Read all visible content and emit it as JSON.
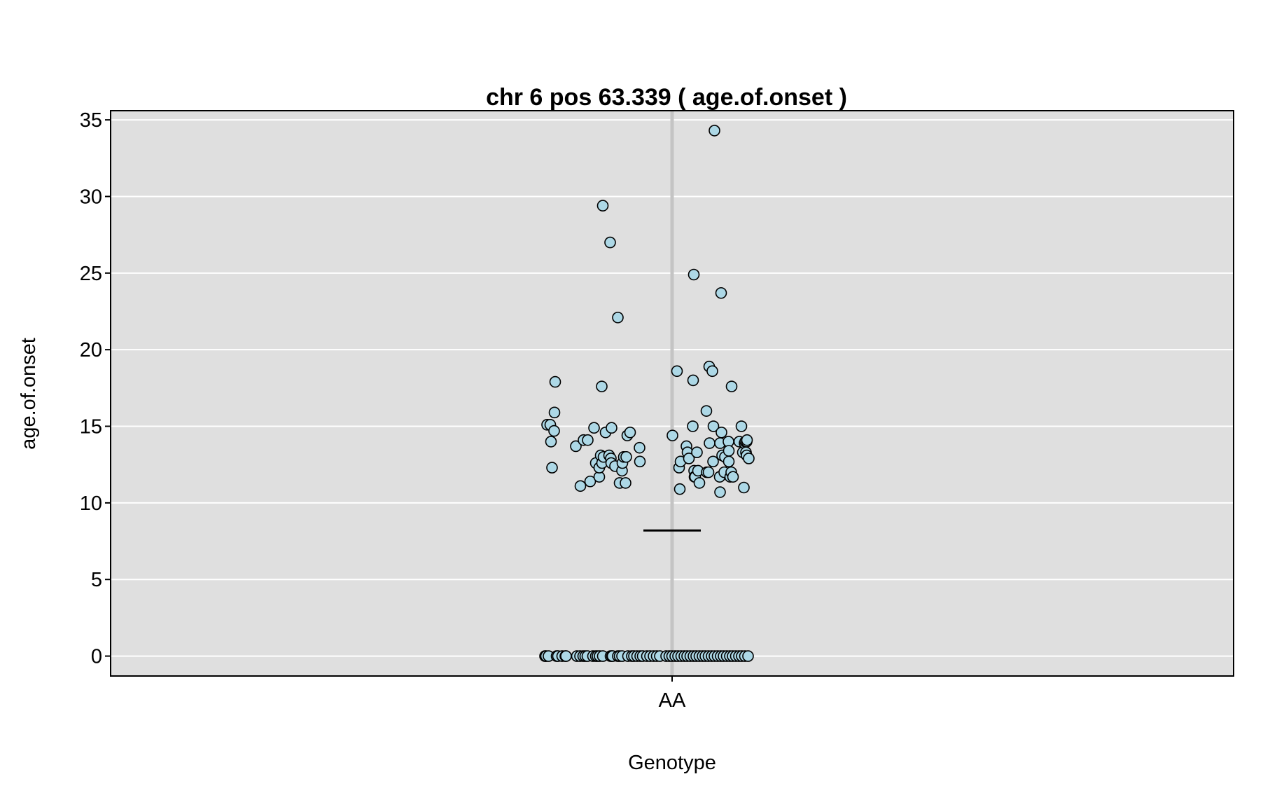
{
  "chart_data": {
    "type": "scatter",
    "title": "chr 6 pos 63.339 ( age.of.onset )",
    "xlabel": "Genotype",
    "ylabel": "age.of.onset",
    "categories": [
      "AA"
    ],
    "ylim": [
      -1.3,
      35.6
    ],
    "yticks": [
      0,
      5,
      10,
      15,
      20,
      25,
      30,
      35
    ],
    "grid": true,
    "mean_line": 8.2,
    "colors": {
      "panel_background": "#dfdfdf",
      "grid": "#ffffff",
      "point_fill": "#add8e6",
      "point_stroke": "#000000",
      "category_line": "#c4c4c4",
      "mean_line": "#000000"
    },
    "points": [
      {
        "x": -0.357,
        "y": 15.1
      },
      {
        "x": -0.348,
        "y": 15.1
      },
      {
        "x": -0.346,
        "y": 14.0
      },
      {
        "x": -0.343,
        "y": 12.3
      },
      {
        "x": -0.337,
        "y": 14.7
      },
      {
        "x": -0.336,
        "y": 15.9
      },
      {
        "x": -0.334,
        "y": 17.9
      },
      {
        "x": -0.275,
        "y": 13.7
      },
      {
        "x": -0.262,
        "y": 11.1
      },
      {
        "x": -0.253,
        "y": 14.1
      },
      {
        "x": -0.241,
        "y": 14.1
      },
      {
        "x": -0.234,
        "y": 11.4
      },
      {
        "x": -0.223,
        "y": 14.9
      },
      {
        "x": -0.218,
        "y": 12.6
      },
      {
        "x": -0.208,
        "y": 11.7
      },
      {
        "x": -0.208,
        "y": 12.3
      },
      {
        "x": -0.204,
        "y": 13.1
      },
      {
        "x": -0.201,
        "y": 17.6
      },
      {
        "x": -0.2,
        "y": 12.6
      },
      {
        "x": -0.198,
        "y": 29.4
      },
      {
        "x": -0.196,
        "y": 13.0
      },
      {
        "x": -0.19,
        "y": 14.6
      },
      {
        "x": -0.18,
        "y": 13.1
      },
      {
        "x": -0.177,
        "y": 27.0
      },
      {
        "x": -0.175,
        "y": 12.9
      },
      {
        "x": -0.174,
        "y": 12.6
      },
      {
        "x": -0.173,
        "y": 14.9
      },
      {
        "x": -0.163,
        "y": 12.4
      },
      {
        "x": -0.155,
        "y": 22.1
      },
      {
        "x": -0.15,
        "y": 11.3
      },
      {
        "x": -0.143,
        "y": 12.1
      },
      {
        "x": -0.142,
        "y": 12.6
      },
      {
        "x": -0.138,
        "y": 13.0
      },
      {
        "x": -0.133,
        "y": 11.3
      },
      {
        "x": -0.131,
        "y": 13.0
      },
      {
        "x": -0.128,
        "y": 14.4
      },
      {
        "x": -0.12,
        "y": 14.6
      },
      {
        "x": -0.093,
        "y": 13.6
      },
      {
        "x": -0.092,
        "y": 12.7
      },
      {
        "x": 0.001,
        "y": 14.4
      },
      {
        "x": 0.014,
        "y": 18.6
      },
      {
        "x": 0.02,
        "y": 12.3
      },
      {
        "x": 0.022,
        "y": 10.9
      },
      {
        "x": 0.024,
        "y": 12.7
      },
      {
        "x": 0.041,
        "y": 13.7
      },
      {
        "x": 0.044,
        "y": 13.3
      },
      {
        "x": 0.048,
        "y": 12.9
      },
      {
        "x": 0.059,
        "y": 15.0
      },
      {
        "x": 0.06,
        "y": 18.0
      },
      {
        "x": 0.062,
        "y": 24.9
      },
      {
        "x": 0.063,
        "y": 12.1
      },
      {
        "x": 0.064,
        "y": 11.7
      },
      {
        "x": 0.066,
        "y": 11.7
      },
      {
        "x": 0.071,
        "y": 13.3
      },
      {
        "x": 0.074,
        "y": 12.1
      },
      {
        "x": 0.078,
        "y": 11.3
      },
      {
        "x": 0.098,
        "y": 16.0
      },
      {
        "x": 0.099,
        "y": 12.0
      },
      {
        "x": 0.104,
        "y": 12.0
      },
      {
        "x": 0.106,
        "y": 18.9
      },
      {
        "x": 0.107,
        "y": 13.9
      },
      {
        "x": 0.115,
        "y": 18.6
      },
      {
        "x": 0.117,
        "y": 12.7
      },
      {
        "x": 0.118,
        "y": 15.0
      },
      {
        "x": 0.121,
        "y": 34.3
      },
      {
        "x": 0.136,
        "y": 11.7
      },
      {
        "x": 0.137,
        "y": 13.9
      },
      {
        "x": 0.137,
        "y": 10.7
      },
      {
        "x": 0.14,
        "y": 23.7
      },
      {
        "x": 0.141,
        "y": 14.6
      },
      {
        "x": 0.143,
        "y": 13.1
      },
      {
        "x": 0.149,
        "y": 12.0
      },
      {
        "x": 0.151,
        "y": 13.0
      },
      {
        "x": 0.161,
        "y": 14.0
      },
      {
        "x": 0.162,
        "y": 13.4
      },
      {
        "x": 0.162,
        "y": 12.7
      },
      {
        "x": 0.166,
        "y": 11.7
      },
      {
        "x": 0.169,
        "y": 12.0
      },
      {
        "x": 0.17,
        "y": 17.6
      },
      {
        "x": 0.174,
        "y": 11.7
      },
      {
        "x": 0.192,
        "y": 14.0
      },
      {
        "x": 0.198,
        "y": 15.0
      },
      {
        "x": 0.202,
        "y": 13.3
      },
      {
        "x": 0.205,
        "y": 11.0
      },
      {
        "x": 0.207,
        "y": 13.9
      },
      {
        "x": 0.209,
        "y": 14.0
      },
      {
        "x": 0.211,
        "y": 13.3
      },
      {
        "x": 0.213,
        "y": 14.0
      },
      {
        "x": 0.213,
        "y": 13.1
      },
      {
        "x": 0.214,
        "y": 14.1
      },
      {
        "x": 0.219,
        "y": 12.9
      },
      {
        "x": -0.363,
        "y": 0
      },
      {
        "x": -0.36,
        "y": 0
      },
      {
        "x": -0.353,
        "y": 0
      },
      {
        "x": -0.33,
        "y": 0
      },
      {
        "x": -0.326,
        "y": 0
      },
      {
        "x": -0.314,
        "y": 0
      },
      {
        "x": -0.305,
        "y": 0
      },
      {
        "x": -0.303,
        "y": 0
      },
      {
        "x": -0.272,
        "y": 0
      },
      {
        "x": -0.263,
        "y": 0
      },
      {
        "x": -0.254,
        "y": 0
      },
      {
        "x": -0.248,
        "y": 0
      },
      {
        "x": -0.242,
        "y": 0
      },
      {
        "x": -0.226,
        "y": 0
      },
      {
        "x": -0.218,
        "y": 0
      },
      {
        "x": -0.213,
        "y": 0
      },
      {
        "x": -0.207,
        "y": 0
      },
      {
        "x": -0.198,
        "y": 0
      },
      {
        "x": -0.176,
        "y": 0
      },
      {
        "x": -0.172,
        "y": 0
      },
      {
        "x": -0.17,
        "y": 0
      },
      {
        "x": -0.155,
        "y": 0
      },
      {
        "x": -0.15,
        "y": 0
      },
      {
        "x": -0.143,
        "y": 0
      },
      {
        "x": -0.126,
        "y": 0
      },
      {
        "x": -0.115,
        "y": 0
      },
      {
        "x": -0.109,
        "y": 0
      },
      {
        "x": -0.1,
        "y": 0
      },
      {
        "x": -0.091,
        "y": 0
      },
      {
        "x": -0.084,
        "y": 0
      },
      {
        "x": -0.072,
        "y": 0
      },
      {
        "x": -0.063,
        "y": 0
      },
      {
        "x": -0.053,
        "y": 0
      },
      {
        "x": -0.044,
        "y": 0
      },
      {
        "x": -0.035,
        "y": 0
      },
      {
        "x": -0.017,
        "y": 0
      },
      {
        "x": -0.008,
        "y": 0
      },
      {
        "x": 0.0,
        "y": 0
      },
      {
        "x": 0.009,
        "y": 0
      },
      {
        "x": 0.017,
        "y": 0
      },
      {
        "x": 0.026,
        "y": 0
      },
      {
        "x": 0.035,
        "y": 0
      },
      {
        "x": 0.043,
        "y": 0
      },
      {
        "x": 0.052,
        "y": 0
      },
      {
        "x": 0.061,
        "y": 0
      },
      {
        "x": 0.069,
        "y": 0
      },
      {
        "x": 0.078,
        "y": 0
      },
      {
        "x": 0.087,
        "y": 0
      },
      {
        "x": 0.095,
        "y": 0
      },
      {
        "x": 0.104,
        "y": 0
      },
      {
        "x": 0.113,
        "y": 0
      },
      {
        "x": 0.121,
        "y": 0
      },
      {
        "x": 0.13,
        "y": 0
      },
      {
        "x": 0.139,
        "y": 0
      },
      {
        "x": 0.147,
        "y": 0
      },
      {
        "x": 0.156,
        "y": 0
      },
      {
        "x": 0.165,
        "y": 0
      },
      {
        "x": 0.173,
        "y": 0
      },
      {
        "x": 0.182,
        "y": 0
      },
      {
        "x": 0.191,
        "y": 0
      },
      {
        "x": 0.199,
        "y": 0
      },
      {
        "x": 0.208,
        "y": 0
      },
      {
        "x": 0.217,
        "y": 0
      }
    ]
  }
}
